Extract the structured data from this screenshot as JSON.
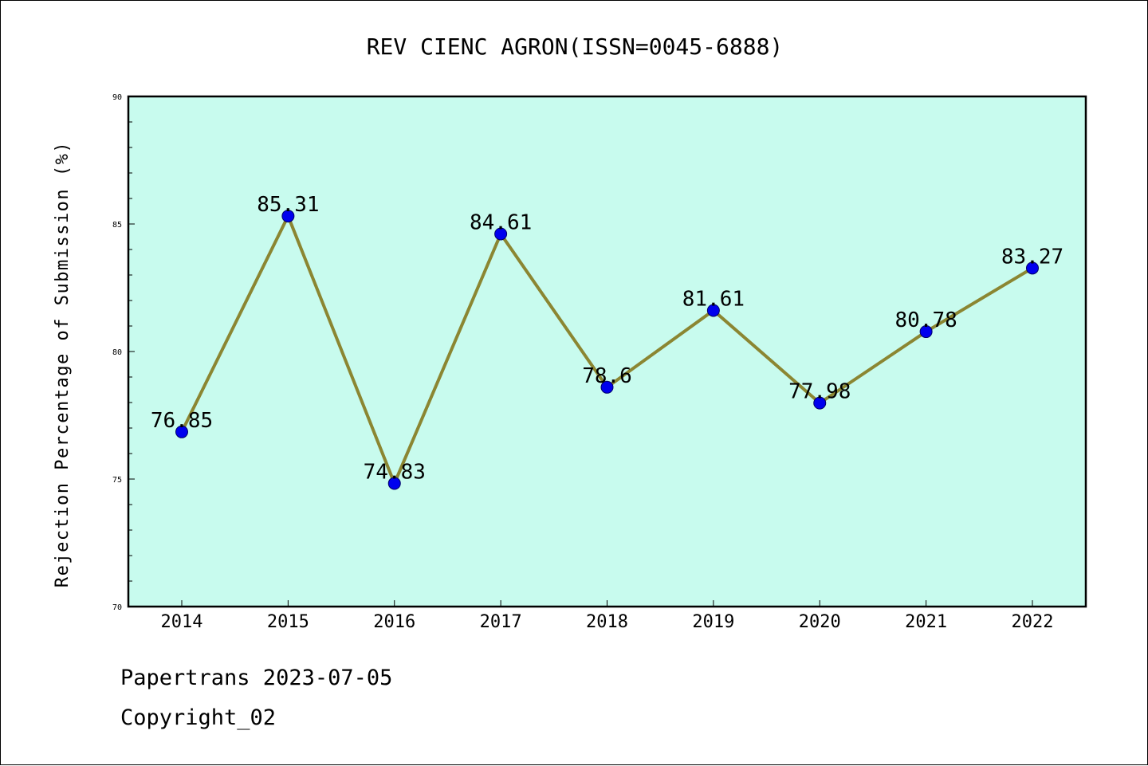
{
  "chart_data": {
    "type": "line",
    "title": "REV CIENC AGRON(ISSN=0045-6888)",
    "xlabel": "",
    "ylabel": "Rejection Percentage of Submission (%)",
    "categories": [
      "2014",
      "2015",
      "2016",
      "2017",
      "2018",
      "2019",
      "2020",
      "2021",
      "2022"
    ],
    "values": [
      76.85,
      85.31,
      74.83,
      84.61,
      78.6,
      81.61,
      77.98,
      80.78,
      83.27
    ],
    "data_labels": [
      "76.85",
      "85.31",
      "74.83",
      "84.61",
      "78.6",
      "81.61",
      "77.98",
      "80.78",
      "83.27"
    ],
    "ylim": [
      70,
      90
    ],
    "y_ticks": [
      "70",
      "75",
      "80",
      "85",
      "90"
    ],
    "grid": false,
    "legend": "none",
    "colors": {
      "plot_background": "#c8fbee",
      "line": "#8b8632",
      "marker": "#0000ee"
    }
  },
  "footer": {
    "source": "Papertrans 2023-07-05",
    "copyright": "Copyright_02"
  }
}
